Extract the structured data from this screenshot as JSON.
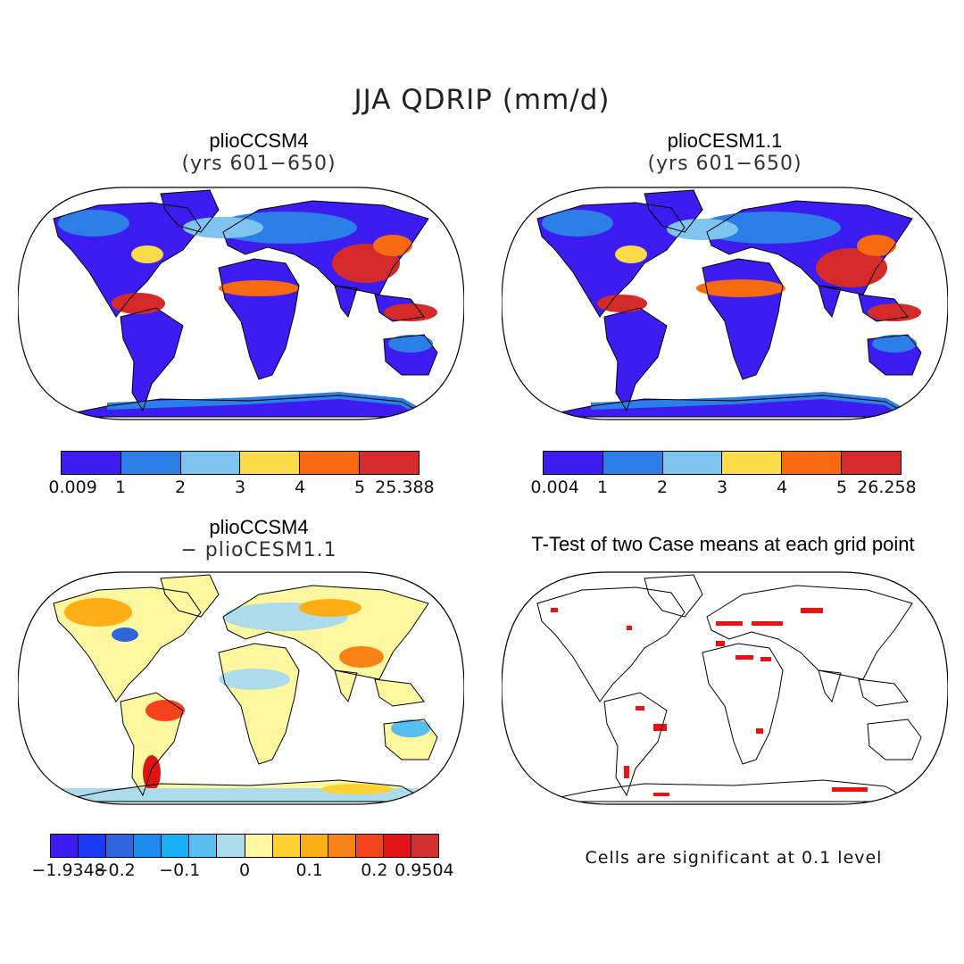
{
  "title": "JJA QDRIP (mm/d)",
  "panels": {
    "top_left": {
      "title": "plioCCSM4",
      "subtitle": "(yrs 601−650)",
      "colorbar": {
        "colors": [
          "#3c1cf0",
          "#2b7fe6",
          "#7fc4ef",
          "#f9dc48",
          "#f86a10",
          "#d42a2a"
        ],
        "labels": [
          "0.009",
          "1",
          "2",
          "3",
          "4",
          "5",
          "25.388"
        ]
      }
    },
    "top_right": {
      "title": "plioCESM1.1",
      "subtitle": "(yrs 601−650)",
      "colorbar": {
        "colors": [
          "#3c1cf0",
          "#2b7fe6",
          "#7fc4ef",
          "#f9dc48",
          "#f86a10",
          "#d42a2a"
        ],
        "labels": [
          "0.004",
          "1",
          "2",
          "3",
          "4",
          "5",
          "26.258"
        ]
      }
    },
    "bottom_left": {
      "title": "plioCCSM4",
      "subtitle": "− plioCESM1.1",
      "colorbar": {
        "colors": [
          "#3c1cf0",
          "#1c39f4",
          "#2f66dd",
          "#1a8cef",
          "#17b0f7",
          "#56bdef",
          "#acdcec",
          "#fdf8a0",
          "#fdd232",
          "#fcae14",
          "#f98218",
          "#f4421c",
          "#e01414",
          "#d03030"
        ],
        "labels": [
          "−1.9348",
          "−0.2",
          "−0.1",
          "0",
          "0.1",
          "0.2",
          "0.9504"
        ]
      }
    },
    "bottom_right": {
      "title": "T-Test of two Case means at each grid point",
      "note": "Cells are significant at 0.1 level",
      "sig_color": "#f01010"
    }
  }
}
